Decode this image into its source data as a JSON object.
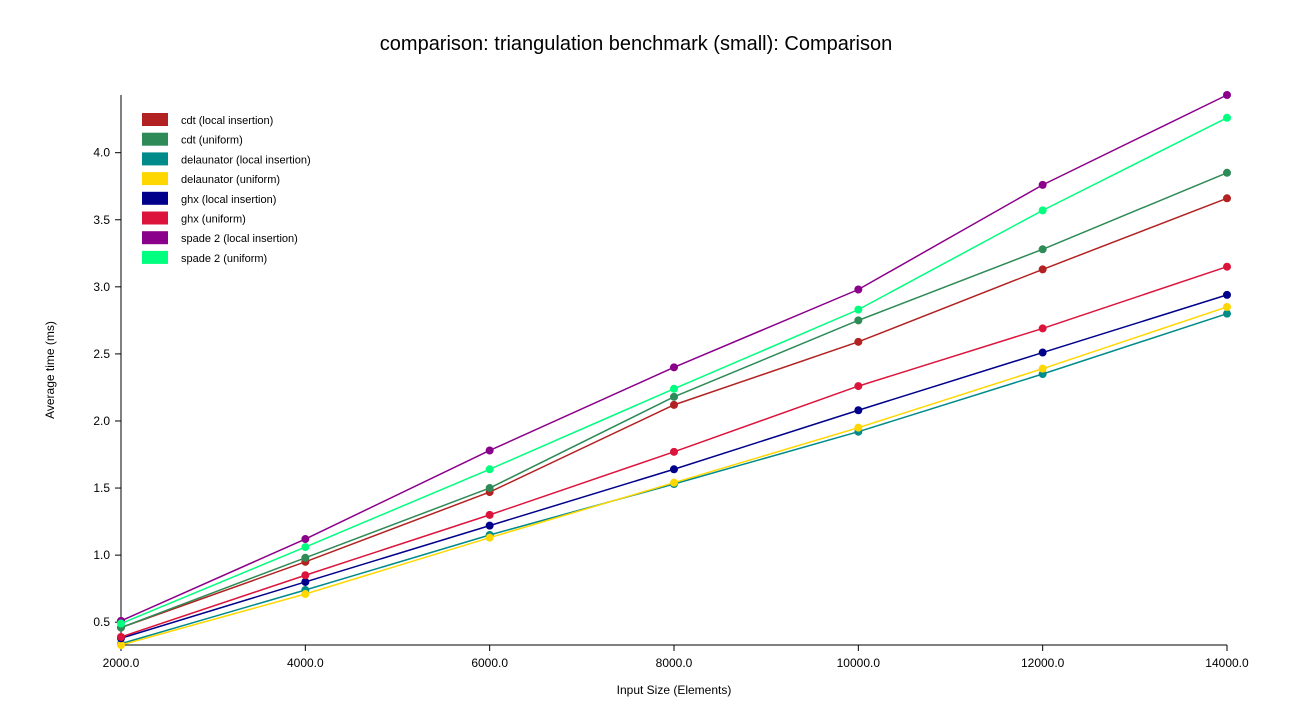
{
  "chart_data": {
    "type": "line",
    "title": "comparison: triangulation benchmark (small): Comparison",
    "xlabel": "Input Size (Elements)",
    "ylabel": "Average time (ms)",
    "x": [
      2000,
      4000,
      6000,
      8000,
      10000,
      12000,
      14000
    ],
    "x_tick_labels": [
      "2000.0",
      "4000.0",
      "6000.0",
      "8000.0",
      "10000.0",
      "12000.0",
      "14000.0"
    ],
    "y_ticks": [
      0.5,
      1.0,
      1.5,
      2.0,
      2.5,
      3.0,
      3.5,
      4.0
    ],
    "y_tick_labels": [
      "0.5",
      "1.0",
      "1.5",
      "2.0",
      "2.5",
      "3.0",
      "3.5",
      "4.0"
    ],
    "xlim": [
      2000,
      14000
    ],
    "ylim": [
      0.33,
      4.43
    ],
    "grid": false,
    "legend_position": "top-left",
    "series": [
      {
        "name": "cdt (local insertion)",
        "color": "#B22222",
        "values": [
          0.46,
          0.95,
          1.47,
          2.12,
          2.59,
          3.13,
          3.66
        ]
      },
      {
        "name": "cdt (uniform)",
        "color": "#2E8B57",
        "values": [
          0.46,
          0.98,
          1.5,
          2.18,
          2.75,
          3.28,
          3.85
        ]
      },
      {
        "name": "delaunator (local insertion)",
        "color": "#008B8B",
        "values": [
          0.34,
          0.74,
          1.15,
          1.53,
          1.92,
          2.35,
          2.8
        ]
      },
      {
        "name": "delaunator (uniform)",
        "color": "#FFD700",
        "values": [
          0.33,
          0.71,
          1.13,
          1.54,
          1.95,
          2.39,
          2.85
        ]
      },
      {
        "name": "ghx (local insertion)",
        "color": "#00008B",
        "values": [
          0.38,
          0.8,
          1.22,
          1.64,
          2.08,
          2.51,
          2.94
        ]
      },
      {
        "name": "ghx (uniform)",
        "color": "#DC143C",
        "values": [
          0.39,
          0.85,
          1.3,
          1.77,
          2.26,
          2.69,
          3.15
        ]
      },
      {
        "name": "spade 2 (local insertion)",
        "color": "#8B008B",
        "values": [
          0.51,
          1.12,
          1.78,
          2.4,
          2.98,
          3.76,
          4.43
        ]
      },
      {
        "name": "spade 2 (uniform)",
        "color": "#00FF7F",
        "values": [
          0.49,
          1.06,
          1.64,
          2.24,
          2.83,
          3.57,
          4.26
        ]
      }
    ]
  }
}
